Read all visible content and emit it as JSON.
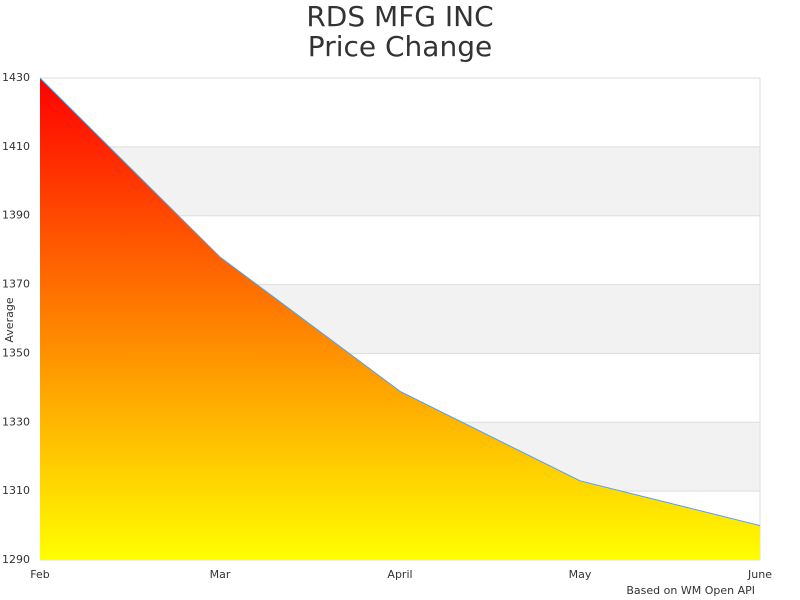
{
  "chart_data": {
    "type": "area",
    "title": "RDS MFG INC",
    "subtitle": "Price Change",
    "y_label": "Average",
    "credits": "Based on WM Open API",
    "categories": [
      "Feb",
      "Mar",
      "April",
      "May",
      "June"
    ],
    "values": [
      1430,
      1378,
      1339,
      1313,
      1300
    ],
    "ylim": [
      1290,
      1430
    ],
    "yticks": [
      1290,
      1310,
      1330,
      1350,
      1370,
      1390,
      1410,
      1430
    ],
    "gradient": [
      "#ff0000",
      "#ffff00"
    ],
    "line_color": "#5aa0d8",
    "band_color": "#f2f2f2",
    "grid": true
  }
}
